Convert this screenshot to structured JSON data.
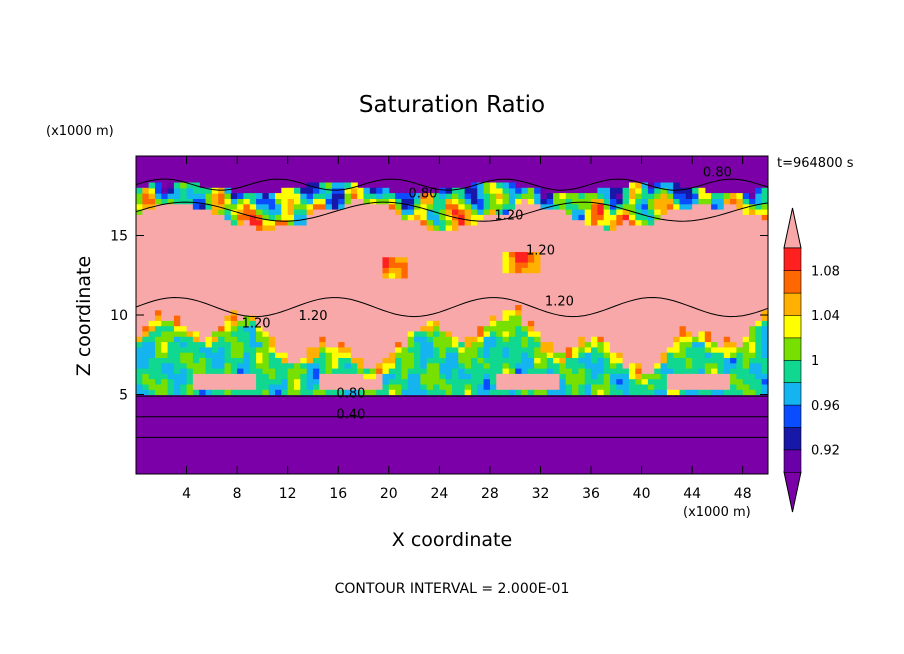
{
  "chart_data": {
    "type": "heatmap",
    "title": "Saturation Ratio",
    "xlabel": "X coordinate",
    "ylabel": "Z coordinate",
    "x_unit": "(x1000 m)",
    "y_unit": "(x1000 m)",
    "time_label": "t=964800 s",
    "footer": "CONTOUR INTERVAL = 2.000E-01",
    "xlim": [
      0,
      50
    ],
    "ylim": [
      0,
      20
    ],
    "xticks": [
      4,
      8,
      12,
      16,
      20,
      24,
      28,
      32,
      36,
      40,
      44,
      48
    ],
    "yticks": [
      5,
      10,
      15
    ],
    "colorbar": {
      "levels": [
        0.9,
        0.92,
        0.94,
        0.96,
        0.98,
        1.0,
        1.02,
        1.04,
        1.06,
        1.08,
        1.1
      ],
      "tick_labels": [
        {
          "value": 0.92,
          "label": "0.92"
        },
        {
          "value": 0.96,
          "label": "0.96"
        },
        {
          "value": 1.0,
          "label": "1"
        },
        {
          "value": 1.04,
          "label": "1.04"
        },
        {
          "value": 1.08,
          "label": "1.08"
        }
      ],
      "colors": [
        "#6a00a8",
        "#1818a8",
        "#0a4cff",
        "#14b4f0",
        "#10d890",
        "#78e000",
        "#ffff00",
        "#ffb000",
        "#ff6800",
        "#ff2020"
      ],
      "under_color": "#7b00a8",
      "over_color": "#f8a8a8"
    },
    "contour_labels": [
      {
        "text": "0.80",
        "x": 46.0,
        "z": 18.7
      },
      {
        "text": "0.80",
        "x": 22.7,
        "z": 17.4
      },
      {
        "text": "1.20",
        "x": 29.5,
        "z": 16.0
      },
      {
        "text": "1.20",
        "x": 32.0,
        "z": 13.8
      },
      {
        "text": "1.20",
        "x": 33.5,
        "z": 10.6
      },
      {
        "text": "1.20",
        "x": 9.5,
        "z": 9.2
      },
      {
        "text": "1.20",
        "x": 14.0,
        "z": 9.7
      },
      {
        "text": "0.80",
        "x": 17.0,
        "z": 4.8
      },
      {
        "text": "0.40",
        "x": 17.0,
        "z": 3.5
      }
    ],
    "regions": {
      "base_below_z": 5.0,
      "upper_saturated_band_z": [
        6.0,
        17.0
      ],
      "mixed_layer_z": [
        5.0,
        10.0
      ],
      "dry_top_above_z": 18.0
    }
  }
}
